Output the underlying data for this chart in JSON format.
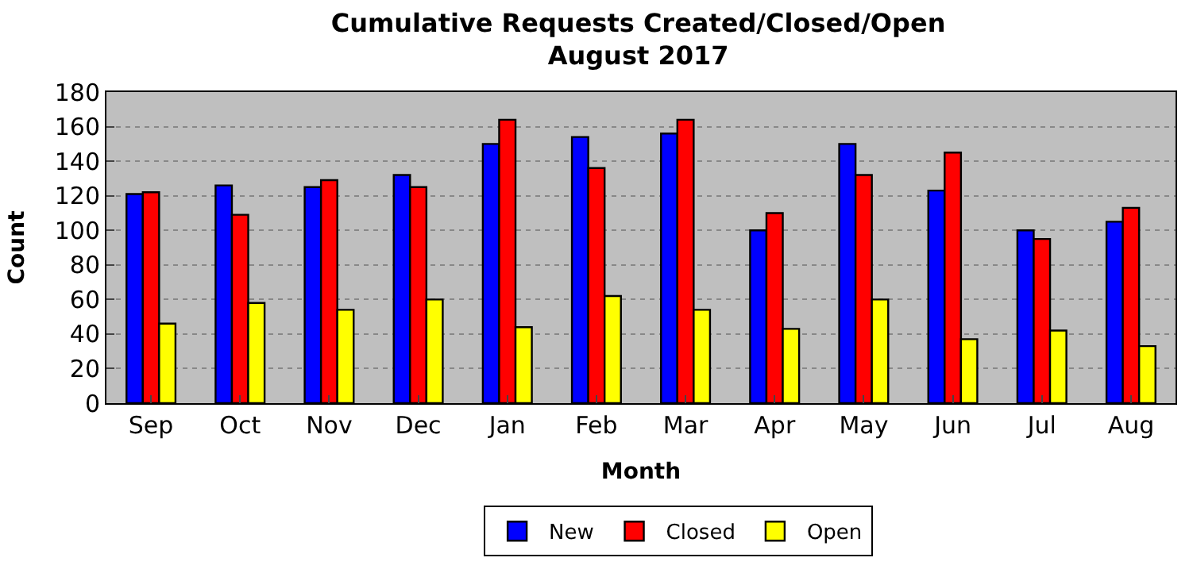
{
  "chart_data": {
    "type": "bar",
    "title": "Cumulative Requests Created/Closed/Open\nAugust 2017",
    "xlabel": "Month",
    "ylabel": "Count",
    "categories": [
      "Sep",
      "Oct",
      "Nov",
      "Dec",
      "Jan",
      "Feb",
      "Mar",
      "Apr",
      "May",
      "Jun",
      "Jul",
      "Aug"
    ],
    "series": [
      {
        "name": "New",
        "color": "#0000ff",
        "values": [
          121,
          126,
          125,
          132,
          150,
          154,
          156,
          100,
          150,
          123,
          100,
          105
        ]
      },
      {
        "name": "Closed",
        "color": "#ff0000",
        "values": [
          122,
          109,
          129,
          125,
          164,
          136,
          164,
          110,
          132,
          145,
          95,
          113
        ]
      },
      {
        "name": "Open",
        "color": "#ffff00",
        "values": [
          46,
          58,
          54,
          60,
          44,
          62,
          54,
          43,
          60,
          37,
          42,
          33
        ]
      }
    ],
    "ylim": [
      0,
      180
    ],
    "yticks": [
      0,
      20,
      40,
      60,
      80,
      100,
      120,
      140,
      160,
      180
    ],
    "grid": "y",
    "legend": "bottom"
  }
}
